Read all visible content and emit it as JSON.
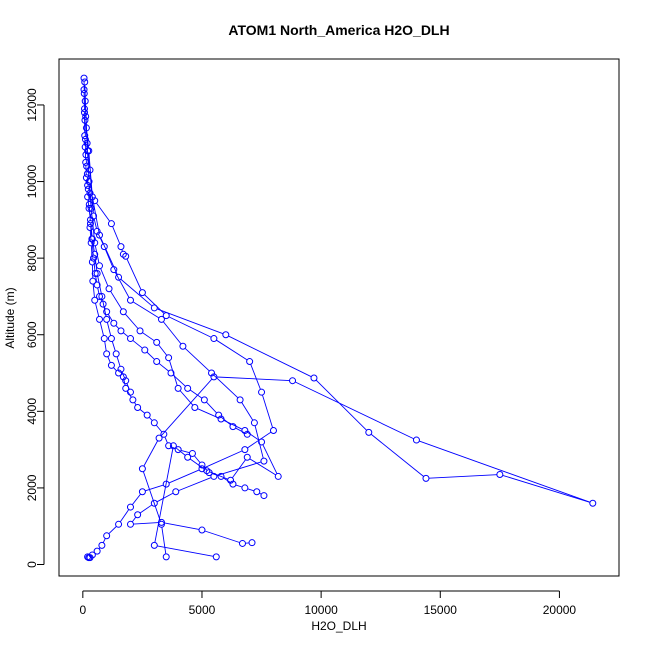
{
  "chart_data": {
    "type": "scatter",
    "title": "ATOM1 North_America H2O_DLH",
    "xlabel": "H2O_DLH",
    "ylabel": "Altitude (m)",
    "xlim": [
      -1000,
      22500
    ],
    "ylim": [
      -300,
      13200
    ],
    "xticks": [
      0,
      5000,
      10000,
      15000,
      20000
    ],
    "xtick_labels": [
      "0",
      "5000",
      "10000",
      "15000",
      "20000"
    ],
    "yticks": [
      0,
      2000,
      4000,
      6000,
      8000,
      10000,
      12000
    ],
    "ytick_labels": [
      "0",
      "2000",
      "4000",
      "6000",
      "8000",
      "10000",
      "12000"
    ],
    "grid": false,
    "legend": "none",
    "colors": {
      "series": "#0000ff",
      "axis": "#000000",
      "background": "#ffffff"
    },
    "series": [
      {
        "mode": "lines+markers",
        "x": [
          50,
          60,
          70,
          80,
          100,
          120,
          150,
          200,
          300,
          500,
          1200,
          1600,
          1700,
          1800,
          2500,
          3500,
          5500,
          7000,
          7500,
          8000,
          6800,
          5000,
          3500,
          2500,
          2000,
          1500,
          1000,
          800,
          600,
          400,
          300,
          250,
          200
        ],
        "y": [
          12700,
          12300,
          11800,
          11200,
          10900,
          10500,
          10100,
          9900,
          9700,
          9500,
          8900,
          8300,
          8100,
          8050,
          7100,
          6500,
          5900,
          5300,
          4500,
          3500,
          3000,
          2500,
          2100,
          1900,
          1500,
          1050,
          750,
          500,
          350,
          250,
          180,
          180,
          200
        ]
      },
      {
        "mode": "lines+markers",
        "x": [
          80,
          150,
          250,
          400,
          700,
          1500,
          3000,
          6000,
          9700,
          12000,
          14400,
          17500,
          21400,
          14000,
          8800,
          5500,
          3200,
          2500,
          3300,
          3500
        ],
        "y": [
          12600,
          11400,
          10800,
          9600,
          8600,
          7500,
          6700,
          6000,
          4870,
          3450,
          2250,
          2350,
          1600,
          3250,
          4800,
          4900,
          3300,
          2500,
          1050,
          200
        ]
      },
      {
        "mode": "lines+markers",
        "x": [
          120,
          200,
          300,
          450,
          600,
          900,
          1300,
          2000,
          3300,
          4200,
          5400,
          6600,
          7200,
          7600,
          5500,
          3900,
          3000,
          2300,
          2000,
          3300,
          5000,
          6700,
          7100
        ],
        "y": [
          11700,
          10800,
          10300,
          9100,
          8700,
          8300,
          7700,
          6900,
          6400,
          5700,
          5000,
          4300,
          3700,
          2700,
          2300,
          1900,
          1600,
          1300,
          1050,
          1100,
          900,
          550,
          570
        ]
      },
      {
        "mode": "lines+markers",
        "x": [
          100,
          180,
          260,
          350,
          500,
          700,
          1100,
          1700,
          2400,
          3100,
          3600,
          4000,
          4700,
          5800,
          6800,
          7500,
          8200,
          6900,
          6200,
          5200,
          4400,
          3800,
          3000,
          5600
        ],
        "y": [
          12100,
          11000,
          10000,
          9300,
          8400,
          7800,
          7200,
          6600,
          6100,
          5800,
          5400,
          4600,
          4100,
          3800,
          3500,
          3200,
          2300,
          2800,
          2200,
          2450,
          2800,
          3100,
          500,
          200
        ]
      },
      {
        "mode": "lines+markers",
        "x": [
          200,
          260,
          320,
          400,
          500,
          600,
          800,
          1000,
          1200,
          1400,
          1600,
          1800,
          2000
        ],
        "y": [
          9600,
          9300,
          9000,
          8500,
          8100,
          7600,
          7000,
          6400,
          5900,
          5500,
          5100,
          4800,
          4500
        ]
      },
      {
        "mode": "lines+markers",
        "x": [
          300,
          350,
          400,
          420,
          500,
          700,
          900,
          1000,
          1200,
          1500,
          1700,
          1800,
          2100,
          2300,
          2700,
          3000,
          3400,
          3600,
          4000,
          4600,
          5000,
          5300,
          5800,
          6300,
          6800,
          7300,
          7600
        ],
        "y": [
          8800,
          8400,
          7900,
          7400,
          6900,
          6400,
          5900,
          5500,
          5200,
          5000,
          4900,
          4600,
          4300,
          4100,
          3900,
          3700,
          3400,
          3100,
          3000,
          2900,
          2600,
          2400,
          2300,
          2100,
          2000,
          1900,
          1800
        ]
      },
      {
        "mode": "lines+markers",
        "x": [
          50,
          70,
          90,
          110,
          130,
          160,
          190,
          230,
          270,
          320,
          380,
          450,
          520,
          600,
          700,
          850,
          1000,
          1300,
          1600,
          2000,
          2600,
          3100,
          3700,
          4400,
          5100,
          5700,
          6300,
          6900
        ],
        "y": [
          12400,
          11900,
          11600,
          11100,
          10700,
          10400,
          10200,
          9800,
          9400,
          8900,
          8500,
          8000,
          7600,
          7300,
          7000,
          6800,
          6600,
          6300,
          6100,
          5900,
          5600,
          5300,
          5000,
          4600,
          4300,
          3900,
          3600,
          3400
        ]
      }
    ]
  }
}
